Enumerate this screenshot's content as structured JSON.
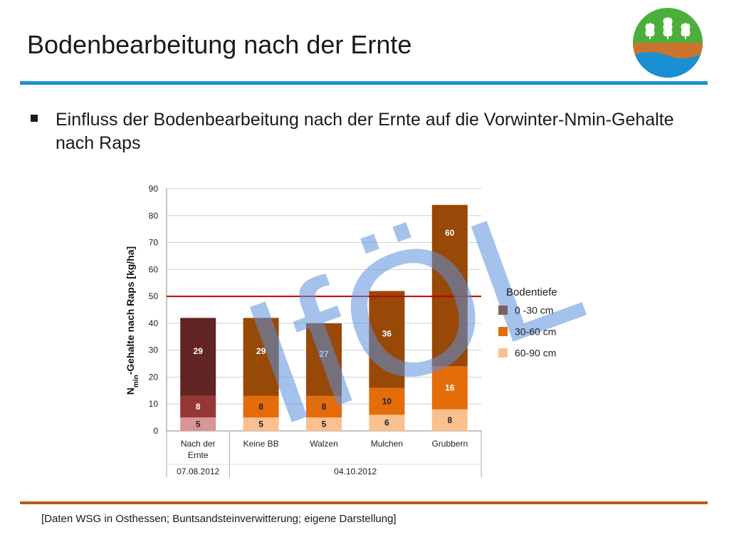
{
  "title": "Bodenbearbeitung nach der Ernte",
  "bullet": "Einfluss der Bodenbearbeitung nach der Ernte auf die Vorwinter-Nmin-Gehalte nach Raps",
  "watermark": "IfÖL",
  "footer": "[Daten WSG in Osthessen; Buntsandsteinverwitterung; eigene Darstellung]",
  "colors": {
    "accent_blue": "#1c8fd6",
    "footer_rule": "#b85a1a",
    "reference_line": "#c00000"
  },
  "legend": {
    "title": "Bodentiefe",
    "items": [
      {
        "label": "0 -30 cm",
        "color": "#7f6060"
      },
      {
        "label": "30-60 cm",
        "color": "#e46c0a"
      },
      {
        "label": "60-90 cm",
        "color": "#fac090"
      }
    ]
  },
  "chart_data": {
    "type": "bar",
    "stacked": true,
    "ylabel_main": "N",
    "ylabel_sub": "min",
    "ylabel_rest": "-Gehalte nach Raps [kg/ha]",
    "ylim": [
      0,
      90
    ],
    "yticks": [
      0,
      10,
      20,
      30,
      40,
      50,
      60,
      70,
      80,
      90
    ],
    "reference_line": 50,
    "categories": [
      "Nach der Ernte",
      "Keine BB",
      "Walzen",
      "Mulchen",
      "Grubbern"
    ],
    "category_lines": [
      [
        "Nach der",
        "Ernte"
      ],
      [
        "Keine BB"
      ],
      [
        "Walzen"
      ],
      [
        "Mulchen"
      ],
      [
        "Grubbern"
      ]
    ],
    "groups": [
      {
        "label": "07.08.2012",
        "categories": [
          "Nach der Ernte"
        ]
      },
      {
        "label": "04.10.2012",
        "categories": [
          "Keine BB",
          "Walzen",
          "Mulchen",
          "Grubbern"
        ]
      }
    ],
    "series": [
      {
        "name": "60-90 cm",
        "values": [
          5,
          5,
          5,
          6,
          8
        ],
        "colors": [
          "#d99694",
          "#fac090",
          "#fac090",
          "#fac090",
          "#fac090"
        ],
        "label_colors": [
          "#222222",
          "#222222",
          "#222222",
          "#222222",
          "#222222"
        ]
      },
      {
        "name": "30-60 cm",
        "values": [
          8,
          8,
          8,
          10,
          16
        ],
        "colors": [
          "#953735",
          "#e46c0a",
          "#e46c0a",
          "#e46c0a",
          "#e46c0a"
        ],
        "label_colors": [
          "#ffffff",
          "#222222",
          "#222222",
          "#222222",
          "#ffffff"
        ]
      },
      {
        "name": "0 -30 cm",
        "values": [
          29,
          29,
          27,
          36,
          60
        ],
        "colors": [
          "#632523",
          "#984807",
          "#984807",
          "#984807",
          "#984807"
        ],
        "label_colors": [
          "#ffffff",
          "#ffffff",
          "#ffffff",
          "#ffffff",
          "#ffffff"
        ]
      }
    ]
  }
}
